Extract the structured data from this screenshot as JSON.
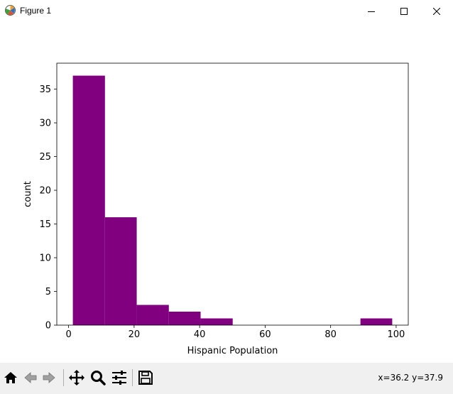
{
  "window": {
    "title": "Figure 1"
  },
  "toolbar": {
    "buttons": [
      {
        "name": "home",
        "icon": "home-icon"
      },
      {
        "name": "back",
        "icon": "back-arrow-icon"
      },
      {
        "name": "forward",
        "icon": "forward-arrow-icon"
      },
      {
        "name": "pan",
        "icon": "move-icon"
      },
      {
        "name": "zoom",
        "icon": "zoom-icon"
      },
      {
        "name": "configure",
        "icon": "sliders-icon"
      },
      {
        "name": "save",
        "icon": "save-icon"
      }
    ],
    "coords": "x=36.2 y=37.9"
  },
  "chart_data": {
    "type": "bar",
    "bins": [
      {
        "x0": 1.3,
        "x1": 11.1,
        "count": 37
      },
      {
        "x0": 11.1,
        "x1": 20.8,
        "count": 16
      },
      {
        "x0": 20.8,
        "x1": 30.6,
        "count": 3
      },
      {
        "x0": 30.6,
        "x1": 40.3,
        "count": 2
      },
      {
        "x0": 40.3,
        "x1": 50.1,
        "count": 1
      },
      {
        "x0": 50.1,
        "x1": 59.8,
        "count": 0
      },
      {
        "x0": 59.8,
        "x1": 69.6,
        "count": 0
      },
      {
        "x0": 69.6,
        "x1": 79.3,
        "count": 0
      },
      {
        "x0": 79.3,
        "x1": 89.1,
        "count": 0
      },
      {
        "x0": 89.1,
        "x1": 98.8,
        "count": 1
      }
    ],
    "color": "#800080",
    "title": "",
    "xlabel": "Hispanic Population",
    "ylabel": "count",
    "xlim": [
      -3.6,
      103.7
    ],
    "ylim": [
      0,
      38.85
    ],
    "xticks": [
      0,
      20,
      40,
      60,
      80,
      100
    ],
    "yticks": [
      0,
      5,
      10,
      15,
      20,
      25,
      30,
      35
    ],
    "grid": false
  }
}
